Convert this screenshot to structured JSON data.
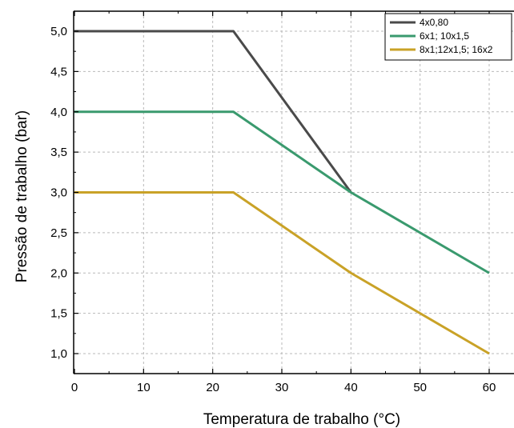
{
  "chart_data": {
    "type": "line",
    "title": "",
    "xlabel": "Temperatura de trabalho (°C)",
    "ylabel": "Pressão de trabalho (bar)",
    "xlim": [
      0,
      60
    ],
    "ylim": [
      0.75,
      5.25
    ],
    "x_ticks": [
      0,
      10,
      20,
      30,
      40,
      50,
      60
    ],
    "x_tick_labels": [
      "0",
      "10",
      "20",
      "30",
      "40",
      "50",
      "60"
    ],
    "y_ticks": [
      1.0,
      1.5,
      2.0,
      2.5,
      3.0,
      3.5,
      4.0,
      4.5,
      5.0
    ],
    "y_tick_labels": [
      "1,0",
      "1,5",
      "2,0",
      "2,5",
      "3,0",
      "3,5",
      "4,0",
      "4,5",
      "5,0"
    ],
    "grid": true,
    "legend_position": "top-right",
    "series": [
      {
        "name": "4x0,80",
        "color": "#4a4a4a",
        "x": [
          0,
          23,
          40
        ],
        "y": [
          5.0,
          5.0,
          3.0
        ]
      },
      {
        "name": "6x1; 10x1,5",
        "color": "#3a9a6e",
        "x": [
          0,
          23,
          40,
          60
        ],
        "y": [
          4.0,
          4.0,
          3.0,
          2.0
        ]
      },
      {
        "name": "8x1;12x1,5; 16x2",
        "color": "#c9a227",
        "x": [
          0,
          23,
          40,
          60
        ],
        "y": [
          3.0,
          3.0,
          2.0,
          1.0
        ]
      }
    ]
  }
}
